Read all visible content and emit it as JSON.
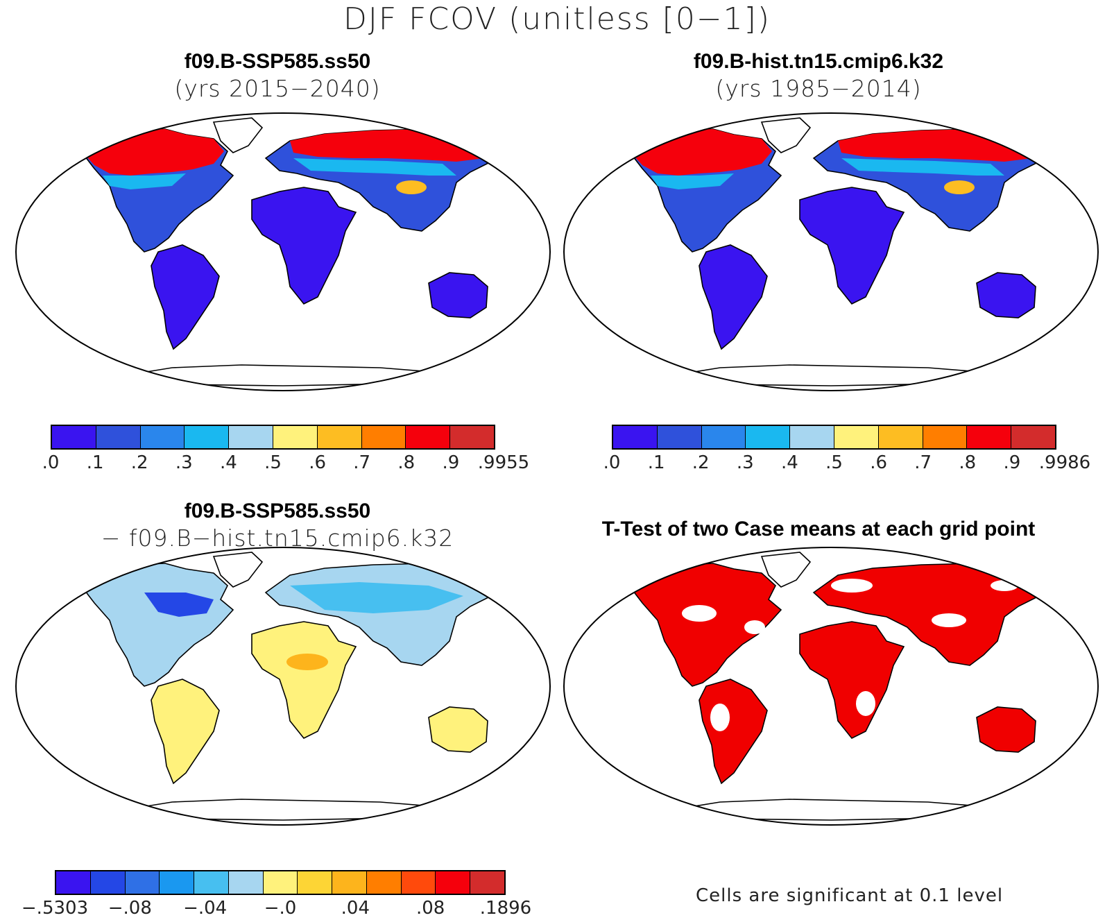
{
  "figure": {
    "title": "DJF FCOV (unitless [0−1])"
  },
  "panels": {
    "top_left": {
      "title": "f09.B-SSP585.ss50",
      "subtitle": "(yrs 2015−2040)",
      "colorbar_labels": [
        ".0",
        ".1",
        ".2",
        ".3",
        ".4",
        ".5",
        ".6",
        ".7",
        ".8",
        ".9",
        ".9955"
      ]
    },
    "top_right": {
      "title": "f09.B-hist.tn15.cmip6.k32",
      "subtitle": "(yrs 1985−2014)",
      "colorbar_labels": [
        ".0",
        ".1",
        ".2",
        ".3",
        ".4",
        ".5",
        ".6",
        ".7",
        ".8",
        ".9",
        ".9986"
      ]
    },
    "bottom_left": {
      "title": "f09.B-SSP585.ss50",
      "subtitle": "− f09.B−hist.tn15.cmip6.k32",
      "colorbar_labels": [
        "−.5303",
        "−.08",
        "−.04",
        "−.0",
        ".04",
        ".08",
        ".1896"
      ]
    },
    "bottom_right": {
      "title": "T-Test of two Case means at each grid point",
      "note": "Cells are significant at 0.1 level"
    }
  },
  "colors": {
    "absolute_scale": [
      "#3a14f0",
      "#2f51db",
      "#2a86ec",
      "#1ab8f0",
      "#a7d6f0",
      "#fff27c",
      "#fdbd22",
      "#ff7e00",
      "#f5000c",
      "#d32c2c"
    ],
    "difference_scale": [
      "#3a14f0",
      "#2447e6",
      "#2f70e6",
      "#1a98f0",
      "#47bff0",
      "#a7d6f0",
      "#fff27c",
      "#fdd535",
      "#fdb41c",
      "#ff7e00",
      "#ff4a0c",
      "#f5000c",
      "#d32c2c"
    ],
    "significance": "#f00000"
  }
}
